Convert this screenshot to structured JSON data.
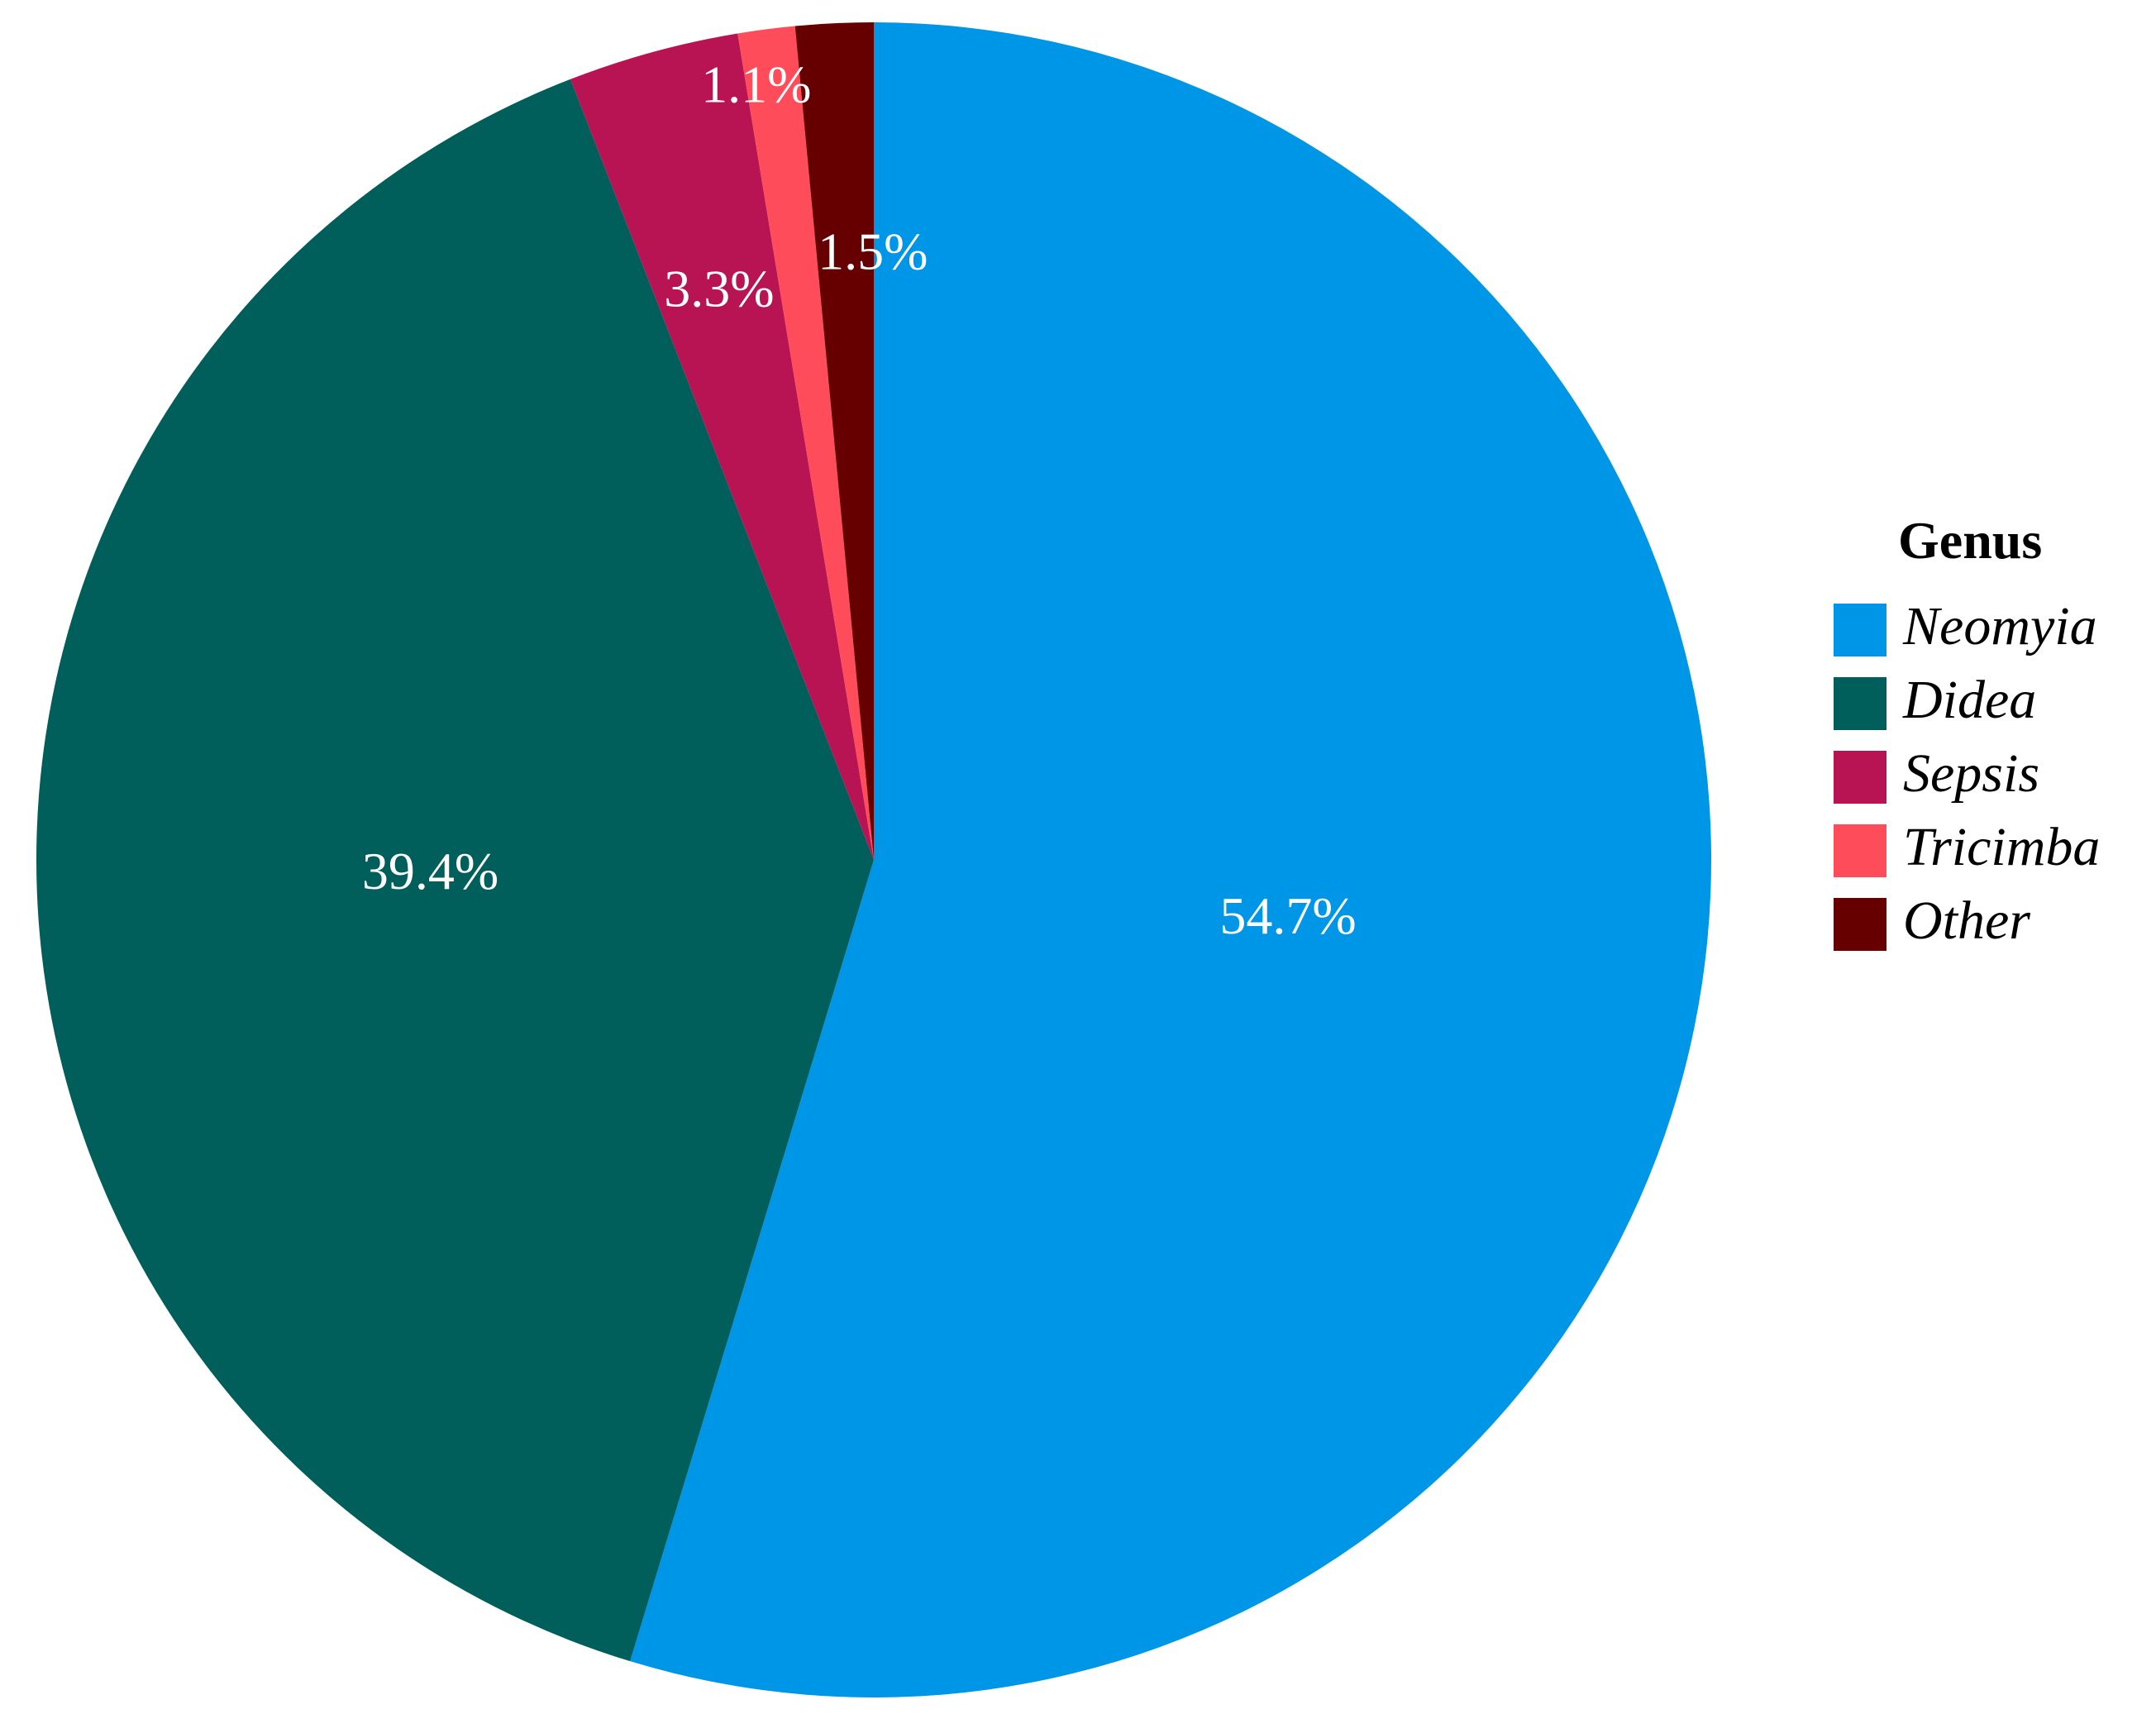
{
  "chart_data": {
    "type": "pie",
    "title": "",
    "start": "12 o'clock, clockwise",
    "legend": {
      "title": "Genus",
      "placement": "right"
    },
    "slices": [
      {
        "label": "Neomyia",
        "value": 54.7,
        "display": "54.7%",
        "color": "#0096E8"
      },
      {
        "label": "Didea",
        "value": 39.4,
        "display": "39.4%",
        "color": "#005E5B"
      },
      {
        "label": "Sepsis",
        "value": 3.3,
        "display": "3.3%",
        "color": "#B81352"
      },
      {
        "label": "Tricimba",
        "value": 1.1,
        "display": "1.1%",
        "color": "#FF4C5A"
      },
      {
        "label": "Other",
        "value": 1.5,
        "display": "1.5%",
        "color": "#660000"
      }
    ]
  }
}
